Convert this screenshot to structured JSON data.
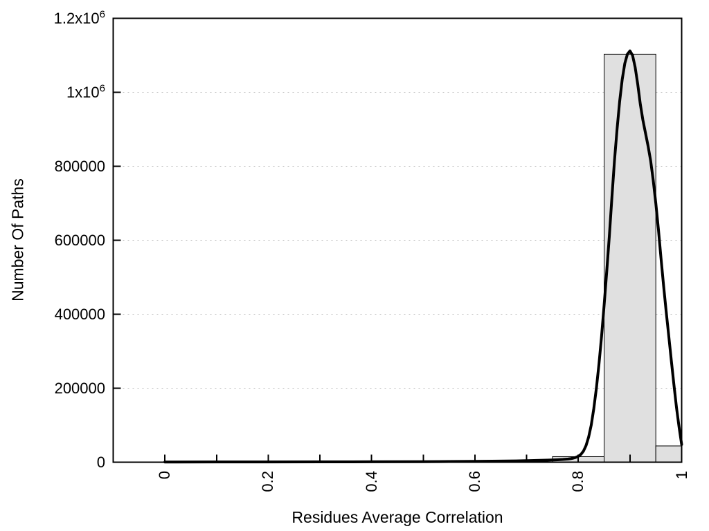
{
  "chart_data": {
    "type": "bar",
    "subtype": "histogram-with-fit-curve",
    "title": "",
    "xlabel": "Residues Average Correlation",
    "ylabel": "Number Of Paths",
    "xlim": [
      -0.1,
      1.0
    ],
    "ylim": [
      0,
      1200000
    ],
    "grid": {
      "horizontal": true,
      "vertical": false,
      "style": "dotted"
    },
    "x_ticks": [
      0,
      0.1,
      0.2,
      0.3,
      0.4,
      0.5,
      0.6,
      0.7,
      0.8,
      0.9,
      1.0
    ],
    "x_tick_labels": [
      {
        "value": 0,
        "label": "0"
      },
      {
        "value": 0.2,
        "label": "0.2"
      },
      {
        "value": 0.4,
        "label": "0.4"
      },
      {
        "value": 0.6,
        "label": "0.6"
      },
      {
        "value": 0.8,
        "label": "0.8"
      },
      {
        "value": 1.0,
        "label": "1"
      }
    ],
    "y_ticks": [
      {
        "value": 0,
        "label": "0"
      },
      {
        "value": 200000,
        "label": "200000"
      },
      {
        "value": 400000,
        "label": "400000"
      },
      {
        "value": 600000,
        "label": "600000"
      },
      {
        "value": 800000,
        "label": "800000"
      },
      {
        "value": 1000000,
        "label": "1x10^6"
      },
      {
        "value": 1200000,
        "label": "1.2x10^6"
      }
    ],
    "bars": [
      {
        "x_start": 0.75,
        "x_end": 0.85,
        "value": 15000
      },
      {
        "x_start": 0.85,
        "x_end": 0.95,
        "value": 1103000
      },
      {
        "x_start": 0.95,
        "x_end": 1.0,
        "value": 44000
      }
    ],
    "curve": {
      "name": "fit-curve",
      "peak": {
        "x": 0.9,
        "value": 1112000
      },
      "points": [
        [
          0.0,
          500
        ],
        [
          0.1,
          600
        ],
        [
          0.2,
          700
        ],
        [
          0.3,
          900
        ],
        [
          0.4,
          1100
        ],
        [
          0.5,
          1500
        ],
        [
          0.55,
          1800
        ],
        [
          0.6,
          2300
        ],
        [
          0.65,
          3000
        ],
        [
          0.68,
          3600
        ],
        [
          0.7,
          4200
        ],
        [
          0.72,
          4800
        ],
        [
          0.74,
          5600
        ],
        [
          0.75,
          6000
        ],
        [
          0.76,
          6600
        ],
        [
          0.77,
          7400
        ],
        [
          0.78,
          8600
        ],
        [
          0.785,
          9600
        ],
        [
          0.79,
          11000
        ],
        [
          0.795,
          13000
        ],
        [
          0.8,
          16000
        ],
        [
          0.805,
          21000
        ],
        [
          0.81,
          30000
        ],
        [
          0.815,
          45000
        ],
        [
          0.82,
          68000
        ],
        [
          0.825,
          100000
        ],
        [
          0.83,
          145000
        ],
        [
          0.835,
          200000
        ],
        [
          0.84,
          265000
        ],
        [
          0.845,
          340000
        ],
        [
          0.85,
          425000
        ],
        [
          0.855,
          515000
        ],
        [
          0.86,
          610000
        ],
        [
          0.865,
          715000
        ],
        [
          0.87,
          815000
        ],
        [
          0.875,
          900000
        ],
        [
          0.88,
          975000
        ],
        [
          0.885,
          1035000
        ],
        [
          0.89,
          1078000
        ],
        [
          0.895,
          1103000
        ],
        [
          0.9,
          1112000
        ],
        [
          0.905,
          1100000
        ],
        [
          0.91,
          1068000
        ],
        [
          0.915,
          1022000
        ],
        [
          0.92,
          968000
        ],
        [
          0.925,
          925000
        ],
        [
          0.93,
          890000
        ],
        [
          0.935,
          855000
        ],
        [
          0.94,
          815000
        ],
        [
          0.945,
          762000
        ],
        [
          0.95,
          700000
        ],
        [
          0.955,
          630000
        ],
        [
          0.96,
          552000
        ],
        [
          0.965,
          478000
        ],
        [
          0.97,
          408000
        ],
        [
          0.975,
          342000
        ],
        [
          0.98,
          275000
        ],
        [
          0.985,
          210000
        ],
        [
          0.99,
          148000
        ],
        [
          0.995,
          95000
        ],
        [
          1.0,
          48000
        ]
      ]
    },
    "colors": {
      "background": "#ffffff",
      "bar_fill": "#e0e0e0",
      "bar_border": "#000000",
      "curve": "#000000",
      "grid": "#bbbbbb",
      "axis": "#000000",
      "text": "#000000"
    }
  }
}
